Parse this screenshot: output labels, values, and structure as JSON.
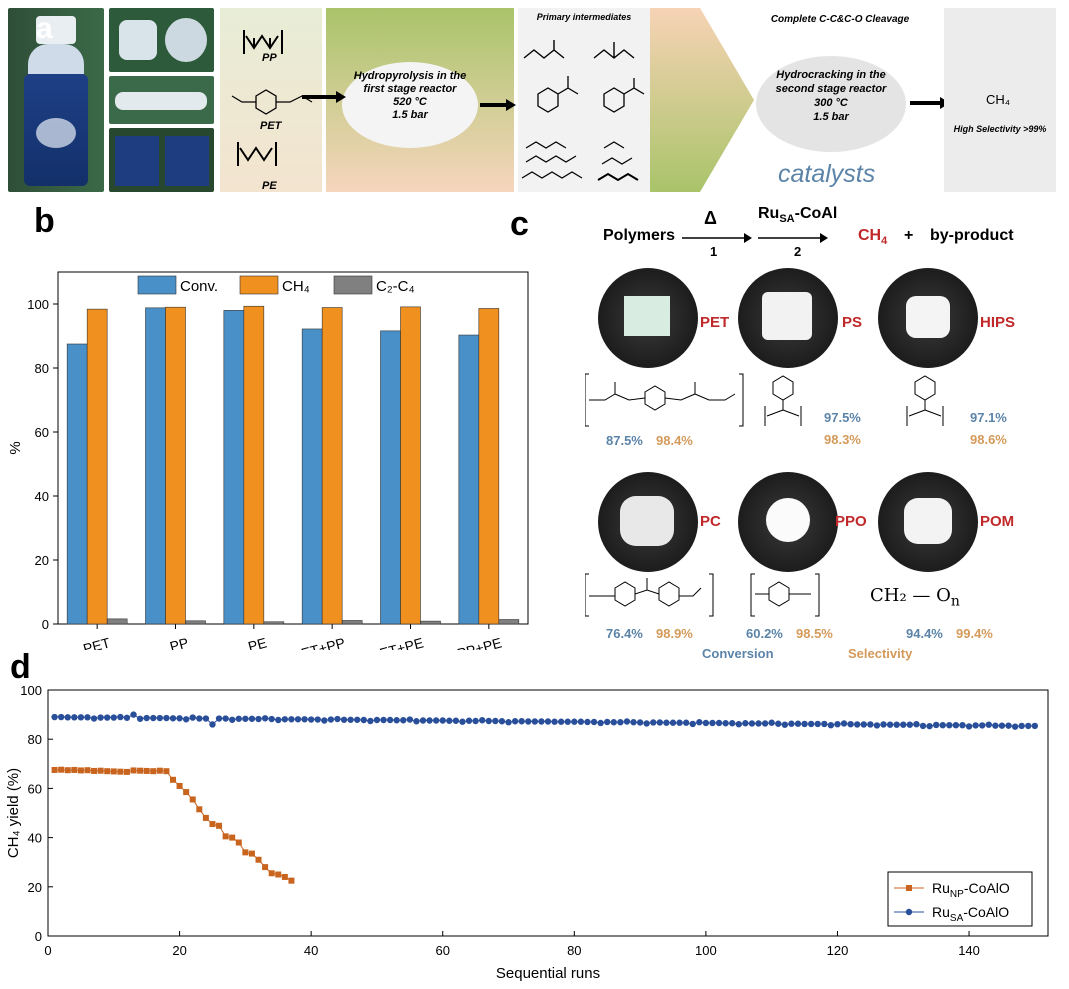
{
  "panel_a": {
    "letter": "a",
    "polymers": [
      {
        "label": "PP"
      },
      {
        "label": "PET"
      },
      {
        "label": "PE"
      }
    ],
    "stage1": {
      "line1": "Hydropyrolysis in the",
      "line2": "first stage reactor",
      "temp": "520 °C",
      "pressure": "1.5 bar"
    },
    "intermediates_title": "Primary intermediates",
    "cleavage_title": "Complete C-C&C-O Cleavage",
    "stage2": {
      "line1": "Hydrocracking in the",
      "line2": "second stage reactor",
      "temp": "300 °C",
      "pressure": "1.5 bar"
    },
    "catalysts_label": "catalysts",
    "product": "CH₄",
    "selectivity": "High Selectivity >99%"
  },
  "panel_b_letter": "b",
  "panel_c": {
    "letter": "c",
    "scheme": {
      "reactant": "Polymers",
      "step1_symbol": "Δ",
      "step1_num": "1",
      "catalyst_main": "Ru",
      "catalyst_sub": "SA",
      "catalyst_rest": "-CoAl",
      "step2_num": "2",
      "product_main": "CH",
      "product_sub": "4",
      "plus": "+",
      "byproduct": "by-product"
    },
    "samples": [
      {
        "name": "PET",
        "conversion": "87.5%",
        "selectivity": "98.4%"
      },
      {
        "name": "PS",
        "conversion": "97.5%",
        "selectivity": "98.3%"
      },
      {
        "name": "HIPS",
        "conversion": "97.1%",
        "selectivity": "98.6%"
      },
      {
        "name": "PC",
        "conversion": "76.4%",
        "selectivity": "98.9%"
      },
      {
        "name": "PPO",
        "conversion": "60.2%",
        "selectivity": "98.5%"
      },
      {
        "name": "POM",
        "conversion": "94.4%",
        "selectivity": "99.4%"
      }
    ],
    "pom_formula": "CH₂ — O",
    "pom_n": "n",
    "legend_conversion": "Conversion",
    "legend_selectivity": "Selectivity"
  },
  "panel_d_letter": "d",
  "chart_data": [
    {
      "type": "bar",
      "ylabel": "%",
      "ylim": [
        0,
        110
      ],
      "yticks": [
        0,
        20,
        40,
        60,
        80,
        100
      ],
      "categories": [
        "PET",
        "PP",
        "PE",
        "PET+PP",
        "PET+PE",
        "PET+PP+PE"
      ],
      "legend_position": "top",
      "series": [
        {
          "name": "Conv.",
          "color": "#4a90c8",
          "values": [
            87.5,
            98.8,
            98.0,
            92.2,
            91.6,
            90.3
          ]
        },
        {
          "name": "CH₄",
          "color": "#f0901e",
          "values": [
            98.4,
            99.0,
            99.3,
            98.9,
            99.1,
            98.6
          ]
        },
        {
          "name": "C₂-C₄",
          "color": "#808080",
          "values": [
            1.6,
            1.0,
            0.7,
            1.1,
            0.9,
            1.4
          ]
        }
      ]
    },
    {
      "type": "scatter",
      "xlabel": "Sequential runs",
      "ylabel": "CH₄ yield (%)",
      "xlim": [
        0,
        152
      ],
      "ylim": [
        0,
        100
      ],
      "xticks": [
        0,
        20,
        40,
        60,
        80,
        100,
        120,
        140
      ],
      "yticks": [
        0,
        20,
        40,
        60,
        80,
        100
      ],
      "legend_position": "bottom-right",
      "series": [
        {
          "name": "Ru_NP-CoAlO",
          "label_main": "Ru",
          "label_sub": "NP",
          "label_rest": "-CoAlO",
          "color": "#c8641e",
          "marker": "square",
          "x": [
            1,
            2,
            3,
            4,
            5,
            6,
            7,
            8,
            9,
            10,
            11,
            12,
            13,
            14,
            15,
            16,
            17,
            18,
            19,
            20,
            21,
            22,
            23,
            24,
            25,
            26,
            27,
            28,
            29,
            30,
            31,
            32,
            33,
            34,
            35,
            36,
            37
          ],
          "y": [
            67.5,
            67.6,
            67.4,
            67.5,
            67.3,
            67.4,
            67.1,
            67.2,
            67.0,
            66.9,
            66.8,
            66.7,
            67.3,
            67.2,
            67.1,
            67.0,
            67.2,
            67.0,
            63.5,
            61.0,
            58.5,
            55.5,
            51.5,
            48.0,
            45.5,
            44.8,
            40.5,
            40.0,
            38.0,
            34.0,
            33.5,
            31.0,
            28.0,
            25.5,
            25.0,
            24.0,
            22.5
          ]
        },
        {
          "name": "Ru_SA-CoAlO",
          "label_main": "Ru",
          "label_sub": "SA",
          "label_rest": "-CoAlO",
          "color": "#2a4f9a",
          "marker": "circle",
          "x": [],
          "y": []
        }
      ]
    }
  ]
}
